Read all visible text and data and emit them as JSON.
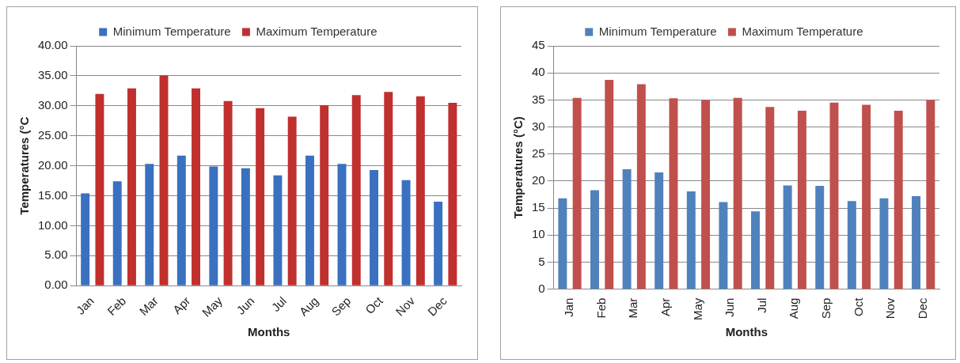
{
  "chart_data": [
    {
      "type": "bar",
      "xlabel": "Months",
      "ylabel": "Temperatures (°C",
      "categories": [
        "Jan",
        "Feb",
        "Mar",
        "Apr",
        "May",
        "Jun",
        "Jul",
        "Aug",
        "Sep",
        "Oct",
        "Nov",
        "Dec"
      ],
      "series": [
        {
          "name": "Minimum Temperature",
          "color": "#3a70c0",
          "values": [
            15.4,
            17.4,
            20.3,
            21.7,
            19.9,
            19.6,
            18.4,
            21.7,
            20.3,
            19.3,
            17.6,
            14.0
          ]
        },
        {
          "name": "Maximum Temperature",
          "color": "#c0302e",
          "values": [
            32.0,
            32.9,
            35.1,
            32.9,
            30.8,
            29.6,
            28.2,
            30.1,
            31.8,
            32.3,
            31.6,
            30.5
          ]
        }
      ],
      "ylim": [
        0,
        40
      ],
      "yticks": [
        {
          "value": 0,
          "label": "0.00"
        },
        {
          "value": 5,
          "label": "5.00"
        },
        {
          "value": 10,
          "label": "10.00"
        },
        {
          "value": 15,
          "label": "15.00"
        },
        {
          "value": 20,
          "label": "20.00"
        },
        {
          "value": 25,
          "label": "25.00"
        },
        {
          "value": 30,
          "label": "30.00"
        },
        {
          "value": 35,
          "label": "35.00"
        },
        {
          "value": 40,
          "label": "40.00"
        }
      ],
      "grid": "y",
      "legend": "top"
    },
    {
      "type": "bar",
      "xlabel": "Months",
      "ylabel": "Temperatures (°C)",
      "categories": [
        "Jan",
        "Feb",
        "Mar",
        "Apr",
        "May",
        "Jun",
        "Jul",
        "Aug",
        "Sep",
        "Oct",
        "Nov",
        "Dec"
      ],
      "series": [
        {
          "name": "Minimum Temperature",
          "color": "#4f81bd",
          "values": [
            16.8,
            18.3,
            22.2,
            21.6,
            18.1,
            16.1,
            14.4,
            19.2,
            19.1,
            16.3,
            16.8,
            17.2
          ]
        },
        {
          "name": "Maximum Temperature",
          "color": "#c0504d",
          "values": [
            35.4,
            38.7,
            37.9,
            35.3,
            35.0,
            35.4,
            33.7,
            33.0,
            34.5,
            34.1,
            33.0,
            35.0
          ]
        }
      ],
      "ylim": [
        0,
        45
      ],
      "yticks": [
        0,
        5,
        10,
        15,
        20,
        25,
        30,
        35,
        40,
        45
      ],
      "grid": "y",
      "legend": "top"
    }
  ]
}
